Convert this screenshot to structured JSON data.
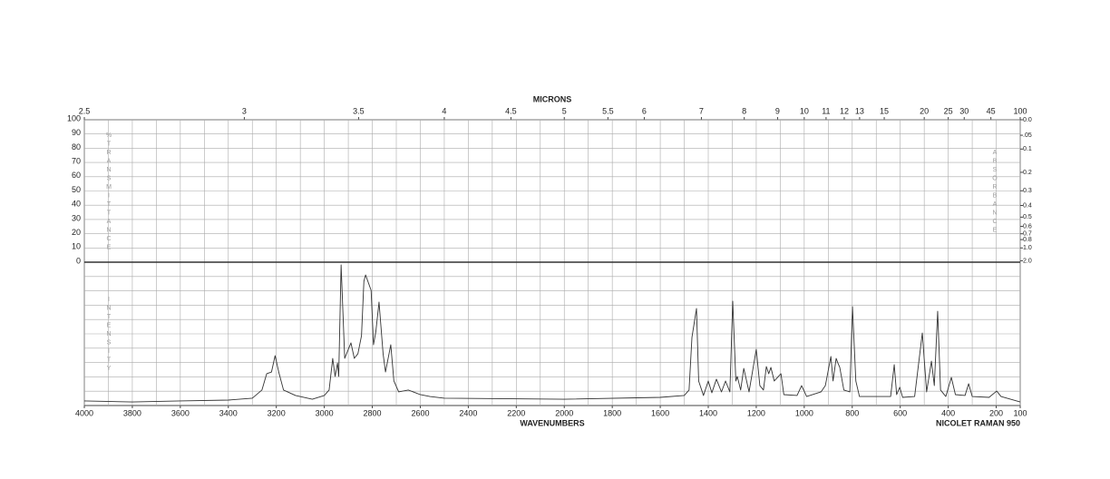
{
  "chart_data": {
    "type": "line",
    "top_axis_label": "MICRONS",
    "xlabel": "WAVENUMBERS",
    "instrument": "NICOLET RAMAN 950",
    "ylabel": "%TRANSMITTANCE",
    "ylabel_lower": "INTENSITY",
    "ylabel_right": "ABSORBANCE",
    "color": "#333333",
    "xlim": [
      4000,
      100
    ],
    "xticks": [
      4000,
      3800,
      3600,
      3400,
      3200,
      3000,
      2800,
      2600,
      2400,
      2200,
      2000,
      1800,
      1600,
      1400,
      1200,
      1000,
      800,
      600,
      400,
      200,
      100
    ],
    "xminorticks": [
      3900,
      3700,
      3500,
      3300,
      3100,
      2900,
      2700,
      2500,
      2300,
      2100,
      1900,
      1700,
      1500,
      1300,
      1100,
      900,
      700,
      500,
      300
    ],
    "x2ticks": [
      2.5,
      3,
      3.5,
      4,
      4.5,
      5,
      5.5,
      6,
      7,
      8,
      9,
      10,
      11,
      12,
      13,
      15,
      20,
      25,
      30,
      45,
      100
    ],
    "ylim": [
      0,
      100
    ],
    "yticks": [
      0,
      10,
      20,
      30,
      40,
      50,
      60,
      70,
      80,
      90,
      100
    ],
    "y2ticks": [
      {
        "value": 0,
        "label": "0.0"
      },
      {
        "value": 0.05,
        "label": ".05"
      },
      0.1,
      0.2,
      0.3,
      0.4,
      0.5,
      0.6,
      0.7,
      0.8,
      {
        "value": 1,
        "label": "1.0"
      },
      {
        "value": 2,
        "label": "2.0"
      }
    ],
    "intensity_lim": [
      0,
      100
    ],
    "grid": true,
    "x": [
      4000,
      3800,
      3600,
      3400,
      3300,
      3260,
      3240,
      3220,
      3205,
      3190,
      3170,
      3120,
      3050,
      3000,
      2980,
      2965,
      2955,
      2945,
      2940,
      2930,
      2915,
      2900,
      2889,
      2875,
      2860,
      2845,
      2835,
      2828,
      2805,
      2795,
      2785,
      2772,
      2755,
      2745,
      2723,
      2710,
      2690,
      2650,
      2620,
      2600,
      2560,
      2500,
      2000,
      1600,
      1500,
      1480,
      1468,
      1449,
      1440,
      1420,
      1400,
      1385,
      1366,
      1345,
      1328,
      1310,
      1298,
      1285,
      1279,
      1265,
      1252,
      1230,
      1200,
      1185,
      1170,
      1158,
      1148,
      1139,
      1125,
      1097,
      1085,
      1030,
      1011,
      990,
      930,
      912,
      889,
      880,
      867,
      860,
      852,
      835,
      810,
      799,
      785,
      770,
      640,
      625,
      615,
      602,
      590,
      540,
      508,
      490,
      470,
      458,
      444,
      432,
      410,
      387,
      370,
      330,
      315,
      300,
      230,
      198,
      180,
      100
    ],
    "values": [
      3.2,
      2.5,
      3.2,
      3.8,
      5.1,
      10.8,
      22.2,
      23.4,
      34.8,
      23.4,
      10.8,
      7.0,
      4.4,
      7.0,
      10.8,
      32.9,
      20.3,
      29.7,
      20.3,
      98.1,
      32.9,
      39.2,
      43.7,
      32.9,
      36.1,
      48.7,
      86.7,
      91.1,
      80.4,
      42.4,
      51.9,
      72.2,
      36.1,
      23.4,
      42.4,
      17.1,
      9.5,
      10.8,
      8.9,
      7.6,
      6.3,
      5.1,
      4.4,
      5.7,
      7.0,
      10.8,
      47.5,
      67.7,
      17.1,
      7.0,
      17.1,
      8.9,
      18.4,
      9.5,
      17.1,
      9.5,
      72.8,
      17.1,
      20.3,
      10.8,
      25.9,
      9.5,
      39.2,
      13.9,
      10.8,
      27.2,
      22.2,
      26.6,
      17.1,
      22.2,
      7.6,
      7.0,
      13.9,
      6.3,
      9.5,
      13.9,
      34.2,
      17.1,
      32.9,
      29.7,
      26.6,
      10.8,
      9.5,
      69.0,
      17.1,
      6.3,
      6.3,
      28.5,
      7.6,
      12.7,
      5.7,
      6.3,
      50.6,
      9.5,
      31.0,
      13.9,
      65.8,
      10.8,
      6.3,
      19.6,
      7.6,
      7.0,
      15.2,
      6.3,
      5.7,
      10.1,
      6.3,
      2.5
    ]
  }
}
